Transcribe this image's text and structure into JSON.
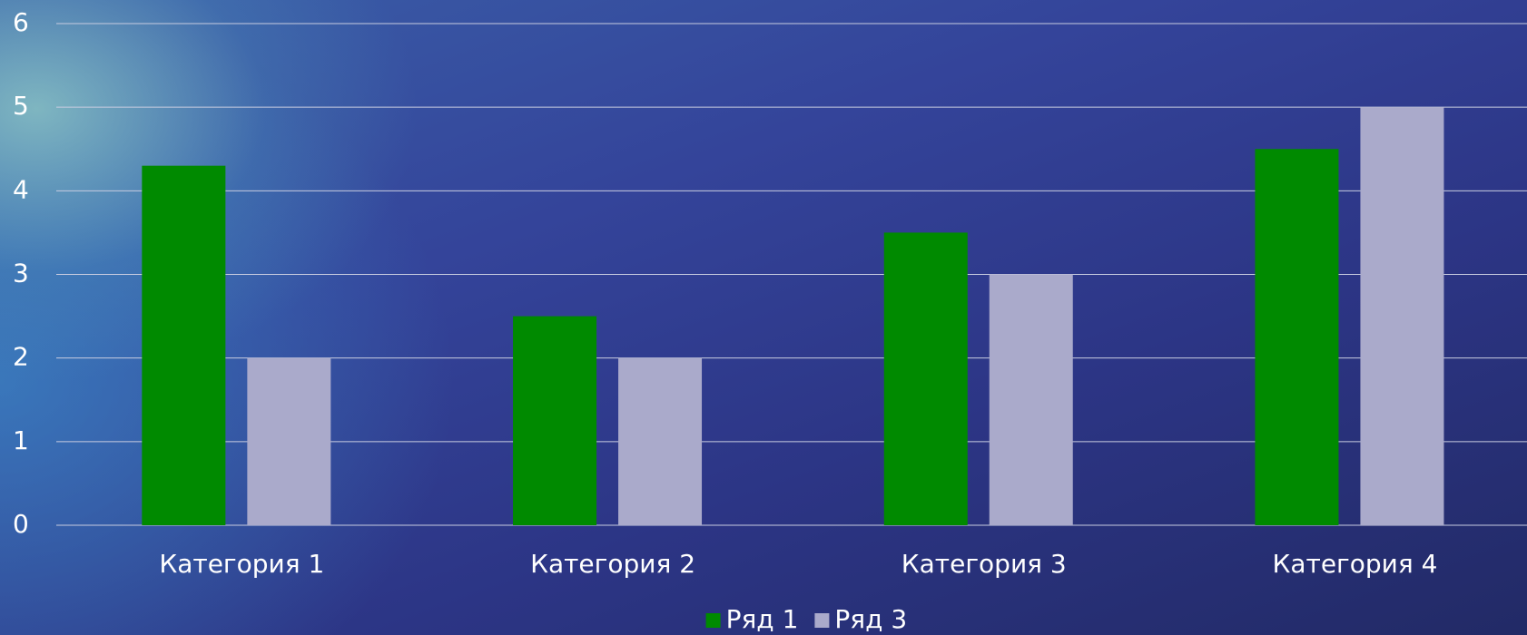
{
  "chart_data": {
    "type": "bar",
    "categories": [
      "Категория 1",
      "Категория 2",
      "Категория 3",
      "Категория 4"
    ],
    "series": [
      {
        "name": "Ряд 1",
        "color": "#008a00",
        "values": [
          4.3,
          2.5,
          3.5,
          4.5
        ]
      },
      {
        "name": "Ряд 3",
        "color": "#aaaacb",
        "values": [
          2,
          2,
          3,
          5
        ]
      }
    ],
    "ylim": [
      0,
      6
    ],
    "yticks": [
      0,
      1,
      2,
      3,
      4,
      5,
      6
    ],
    "grid": true,
    "legend": "bottom"
  }
}
